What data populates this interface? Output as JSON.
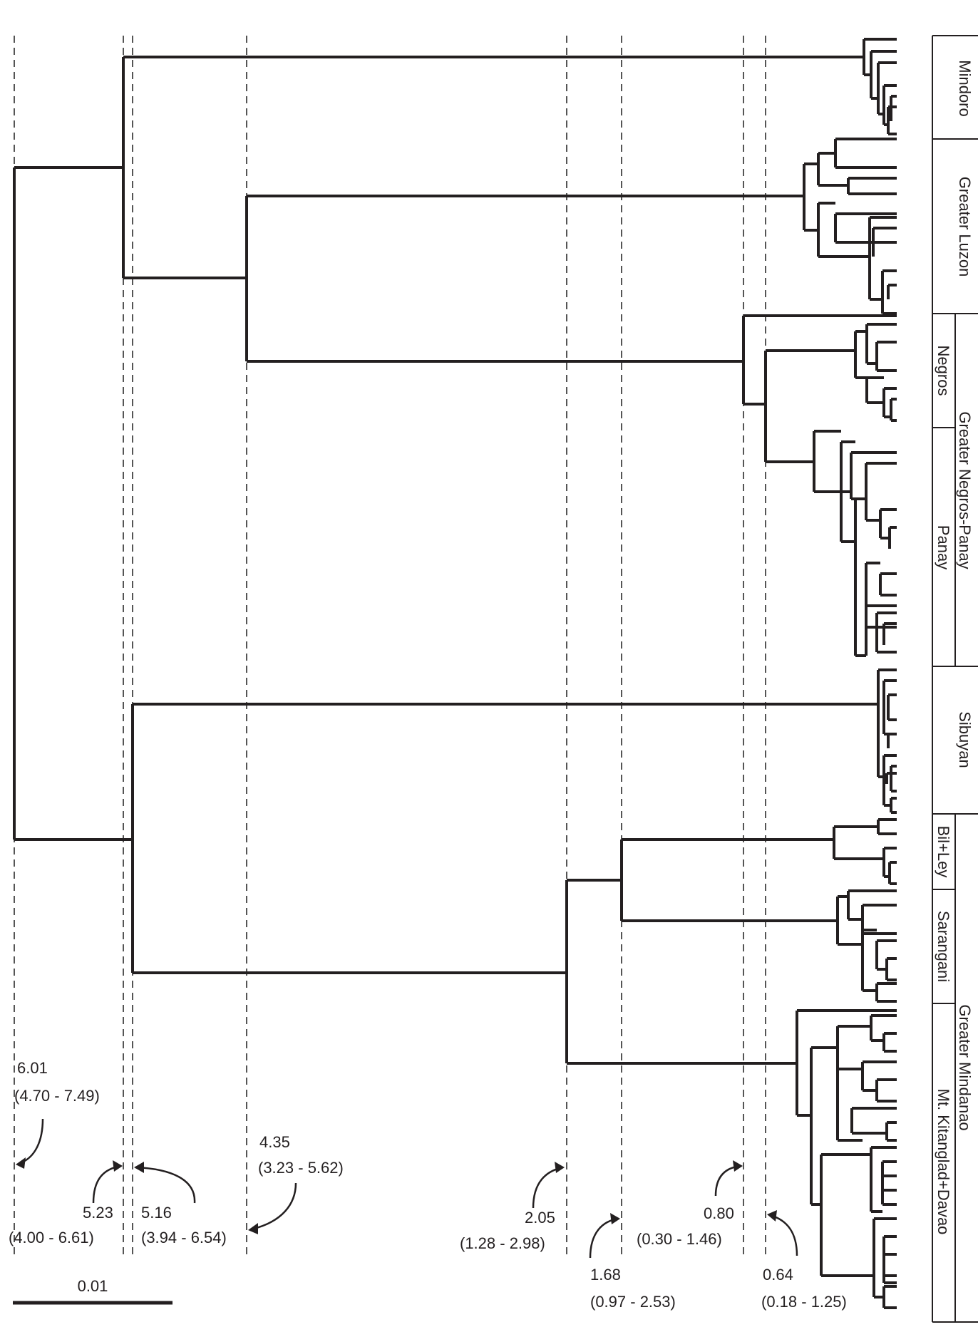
{
  "scale_bar": {
    "label": "0.01"
  },
  "divergence_nodes": [
    {
      "age": "6.01",
      "interval": "(4.70 - 7.49)"
    },
    {
      "age": "5.23",
      "interval": "(4.00 - 6.61)"
    },
    {
      "age": "5.16",
      "interval": "(3.94 - 6.54)"
    },
    {
      "age": "4.35",
      "interval": "(3.23 - 5.62)"
    },
    {
      "age": "2.05",
      "interval": "(1.28 - 2.98)"
    },
    {
      "age": "1.68",
      "interval": "(0.97 - 2.53)"
    },
    {
      "age": "0.80",
      "interval": "(0.30 - 1.46)"
    },
    {
      "age": "0.64",
      "interval": "(0.18 - 1.25)"
    }
  ],
  "regions": {
    "mindoro": "Mindoro",
    "greater_luzon": "Greater Luzon",
    "negros": "Negros",
    "greater_negros_panay": "Greater Negros-Panay",
    "panay": "Panay",
    "sibuyan": "Sibuyan",
    "bil_ley": "Bil+Ley",
    "sarangani": "Sarangani",
    "greater_mindanao": "Greater Mindanao",
    "kitanglad_davao": "Mt. Kitanglad+Davao"
  },
  "colors": {
    "line": "#231f20",
    "dashed": "#555555",
    "background": "#ffffff"
  }
}
